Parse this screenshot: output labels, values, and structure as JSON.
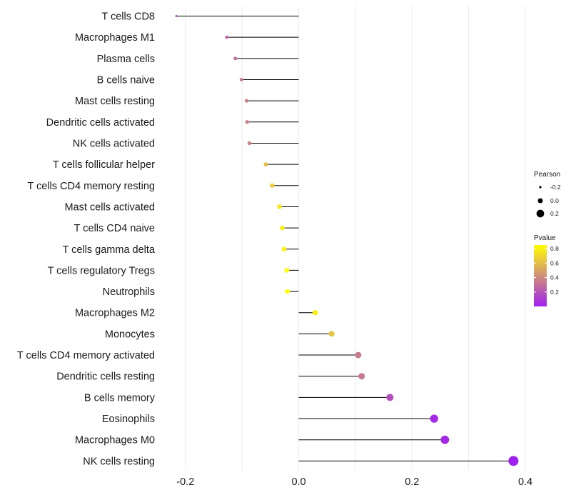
{
  "chart_data": {
    "type": "lollipop",
    "title": "",
    "xlabel": "",
    "ylabel": "",
    "xlim": [
      -0.235,
      0.405
    ],
    "xticks": [
      -0.2,
      0.0,
      0.2,
      0.4
    ],
    "xtick_labels": [
      "-0.2",
      "0.0",
      "0.2",
      "0.4"
    ],
    "grid": true,
    "categories": [
      "T cells CD8",
      "Macrophages M1",
      "Plasma cells",
      "B cells naive",
      "Mast cells resting",
      "Dendritic cells activated",
      "NK cells activated",
      "T cells follicular helper",
      "T cells CD4 memory resting",
      "Mast cells activated",
      "T cells CD4 naive",
      "T cells gamma delta",
      "T cells regulatory  Tregs ",
      "Neutrophils",
      "Macrophages M2",
      "Monocytes",
      "T cells CD4 memory activated",
      "Dendritic cells resting",
      "B cells memory",
      "Eosinophils",
      "Macrophages M0",
      "NK cells resting"
    ],
    "pearson": [
      -0.216,
      -0.127,
      -0.112,
      -0.101,
      -0.092,
      -0.091,
      -0.087,
      -0.058,
      -0.047,
      -0.034,
      -0.029,
      -0.026,
      -0.021,
      -0.02,
      0.029,
      0.058,
      0.105,
      0.111,
      0.161,
      0.239,
      0.258,
      0.379
    ],
    "pvalue": [
      0.15,
      0.25,
      0.3,
      0.35,
      0.37,
      0.37,
      0.38,
      0.6,
      0.66,
      0.76,
      0.79,
      0.81,
      0.85,
      0.86,
      0.79,
      0.62,
      0.36,
      0.34,
      0.17,
      0.04,
      0.03,
      0.001
    ],
    "legend": {
      "size_title": "Pearson",
      "size_values": [
        -0.2,
        0.0,
        0.2
      ],
      "size_labels": [
        "-0.2",
        "0.0",
        "0.2"
      ],
      "color_title": "Pvalue",
      "color_range": [
        0.0,
        0.85
      ],
      "color_ticks": [
        0.8,
        0.6,
        0.4,
        0.2
      ],
      "color_tick_labels": [
        "0.8",
        "0.6",
        "0.4",
        "0.2"
      ],
      "color_low": "#a020f0",
      "color_high": "#ffff00",
      "placement": "right"
    },
    "line_color": "#000000",
    "grid_color": "#ebebeb"
  }
}
